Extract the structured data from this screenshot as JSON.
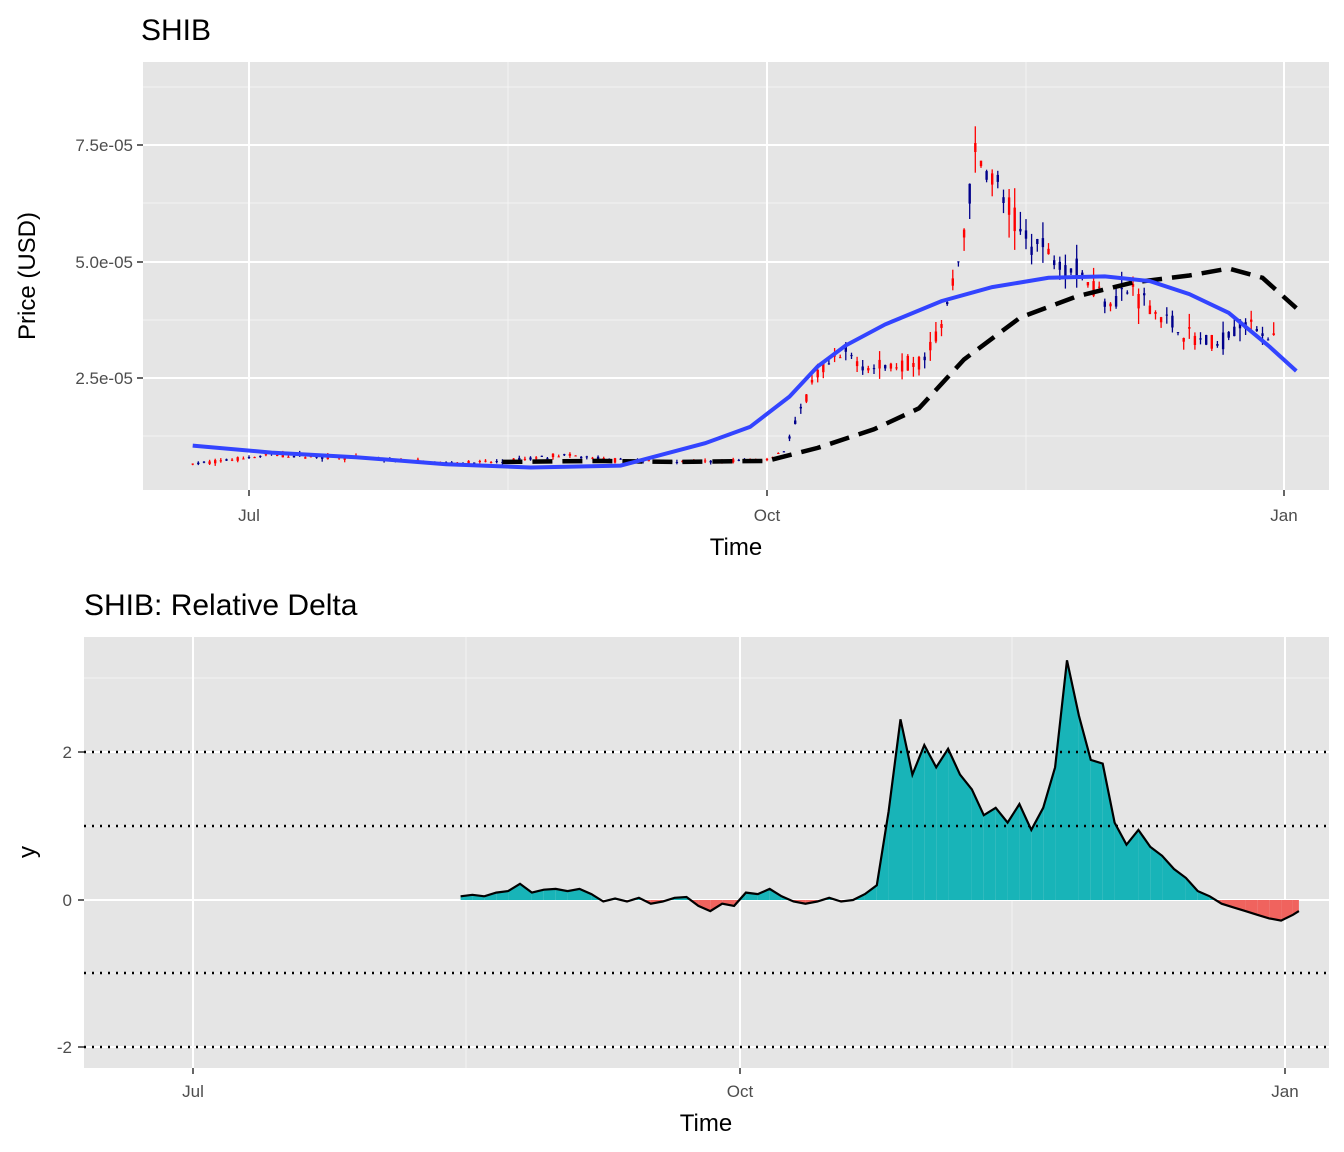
{
  "chart_data": [
    {
      "type": "candlestick",
      "title": "SHIB",
      "xlabel": "Time",
      "ylabel": "Price (USD)",
      "x_ticks": [
        "Jul",
        "Oct",
        "Jan"
      ],
      "y_ticks": [
        "2.5e-05",
        "5.0e-05",
        "7.5e-05"
      ],
      "ylim": [
        0,
        9e-05
      ],
      "grid": true,
      "colors": {
        "up": "#00008b",
        "down": "#ff0000",
        "smooth": "#3344ff",
        "moving_average": "#000000",
        "panel": "#e5e5e5"
      },
      "smooth_curve": [
        [
          "2021-06-21",
          1.05e-05
        ],
        [
          "2021-07-05",
          9e-06
        ],
        [
          "2021-07-20",
          8e-06
        ],
        [
          "2021-08-05",
          6.5e-06
        ],
        [
          "2021-08-20",
          5.8e-06
        ],
        [
          "2021-09-05",
          6.2e-06
        ],
        [
          "2021-09-20",
          1.1e-05
        ],
        [
          "2021-09-28",
          1.45e-05
        ],
        [
          "2021-10-05",
          2.1e-05
        ],
        [
          "2021-10-10",
          2.75e-05
        ],
        [
          "2021-10-15",
          3.2e-05
        ],
        [
          "2021-10-22",
          3.65e-05
        ],
        [
          "2021-11-01",
          4.15e-05
        ],
        [
          "2021-11-10",
          4.45e-05
        ],
        [
          "2021-11-20",
          4.65e-05
        ],
        [
          "2021-11-30",
          4.68e-05
        ],
        [
          "2021-12-08",
          4.58e-05
        ],
        [
          "2021-12-15",
          4.3e-05
        ],
        [
          "2021-12-22",
          3.9e-05
        ],
        [
          "2021-12-29",
          3.2e-05
        ],
        [
          "2022-01-03",
          2.65e-05
        ]
      ],
      "moving_average": [
        [
          "2021-08-15",
          7e-06
        ],
        [
          "2021-09-01",
          7.2e-06
        ],
        [
          "2021-09-15",
          7e-06
        ],
        [
          "2021-10-01",
          7.2e-06
        ],
        [
          "2021-10-10",
          1e-05
        ],
        [
          "2021-10-20",
          1.4e-05
        ],
        [
          "2021-10-28",
          1.85e-05
        ],
        [
          "2021-11-05",
          2.9e-05
        ],
        [
          "2021-11-15",
          3.8e-05
        ],
        [
          "2021-11-25",
          4.25e-05
        ],
        [
          "2021-12-05",
          4.55e-05
        ],
        [
          "2021-12-15",
          4.7e-05
        ],
        [
          "2021-12-22",
          4.85e-05
        ],
        [
          "2021-12-28",
          4.65e-05
        ],
        [
          "2022-01-03",
          4e-05
        ]
      ]
    },
    {
      "type": "area",
      "title": "SHIB: Relative Delta",
      "xlabel": "Time",
      "ylabel": "y",
      "x_ticks": [
        "Jul",
        "Oct",
        "Jan"
      ],
      "y_ticks": [
        "-2",
        "0",
        "2"
      ],
      "ylim": [
        -2.3,
        3.4
      ],
      "reference_lines": [
        -2,
        -1,
        1,
        2
      ],
      "colors": {
        "positive": "#18b4b8",
        "negative": "#f0635e",
        "line": "#000000",
        "panel": "#e5e5e5"
      },
      "series": [
        [
          "2021-08-15",
          0.05
        ],
        [
          "2021-08-17",
          0.07
        ],
        [
          "2021-08-19",
          0.05
        ],
        [
          "2021-08-21",
          0.1
        ],
        [
          "2021-08-23",
          0.12
        ],
        [
          "2021-08-25",
          0.22
        ],
        [
          "2021-08-27",
          0.1
        ],
        [
          "2021-08-29",
          0.14
        ],
        [
          "2021-08-31",
          0.15
        ],
        [
          "2021-09-02",
          0.12
        ],
        [
          "2021-09-04",
          0.15
        ],
        [
          "2021-09-06",
          0.08
        ],
        [
          "2021-09-08",
          -0.02
        ],
        [
          "2021-09-10",
          0.02
        ],
        [
          "2021-09-12",
          -0.02
        ],
        [
          "2021-09-14",
          0.03
        ],
        [
          "2021-09-16",
          -0.05
        ],
        [
          "2021-09-18",
          -0.02
        ],
        [
          "2021-09-20",
          0.03
        ],
        [
          "2021-09-22",
          0.04
        ],
        [
          "2021-09-24",
          -0.08
        ],
        [
          "2021-09-26",
          -0.15
        ],
        [
          "2021-09-28",
          -0.05
        ],
        [
          "2021-09-30",
          -0.08
        ],
        [
          "2021-10-02",
          0.1
        ],
        [
          "2021-10-04",
          0.08
        ],
        [
          "2021-10-06",
          0.15
        ],
        [
          "2021-10-08",
          0.05
        ],
        [
          "2021-10-10",
          -0.02
        ],
        [
          "2021-10-12",
          -0.05
        ],
        [
          "2021-10-14",
          -0.02
        ],
        [
          "2021-10-16",
          0.03
        ],
        [
          "2021-10-18",
          -0.02
        ],
        [
          "2021-10-20",
          0.0
        ],
        [
          "2021-10-22",
          0.08
        ],
        [
          "2021-10-24",
          0.2
        ],
        [
          "2021-10-26",
          1.2
        ],
        [
          "2021-10-28",
          2.45
        ],
        [
          "2021-10-30",
          1.7
        ],
        [
          "2021-11-01",
          2.1
        ],
        [
          "2021-11-03",
          1.8
        ],
        [
          "2021-11-05",
          2.05
        ],
        [
          "2021-11-07",
          1.7
        ],
        [
          "2021-11-09",
          1.5
        ],
        [
          "2021-11-11",
          1.15
        ],
        [
          "2021-11-13",
          1.25
        ],
        [
          "2021-11-15",
          1.05
        ],
        [
          "2021-11-17",
          1.3
        ],
        [
          "2021-11-19",
          0.95
        ],
        [
          "2021-11-21",
          1.25
        ],
        [
          "2021-11-23",
          1.8
        ],
        [
          "2021-11-25",
          3.25
        ],
        [
          "2021-11-27",
          2.5
        ],
        [
          "2021-11-29",
          1.9
        ],
        [
          "2021-12-01",
          1.85
        ],
        [
          "2021-12-03",
          1.05
        ],
        [
          "2021-12-05",
          0.75
        ],
        [
          "2021-12-07",
          0.95
        ],
        [
          "2021-12-09",
          0.72
        ],
        [
          "2021-12-11",
          0.6
        ],
        [
          "2021-12-13",
          0.42
        ],
        [
          "2021-12-15",
          0.3
        ],
        [
          "2021-12-17",
          0.12
        ],
        [
          "2021-12-19",
          0.05
        ],
        [
          "2021-12-21",
          -0.05
        ],
        [
          "2021-12-23",
          -0.1
        ],
        [
          "2021-12-25",
          -0.15
        ],
        [
          "2021-12-27",
          -0.2
        ],
        [
          "2021-12-29",
          -0.25
        ],
        [
          "2021-12-31",
          -0.28
        ],
        [
          "2022-01-02",
          -0.2
        ],
        [
          "2022-01-03",
          -0.15
        ]
      ]
    }
  ]
}
